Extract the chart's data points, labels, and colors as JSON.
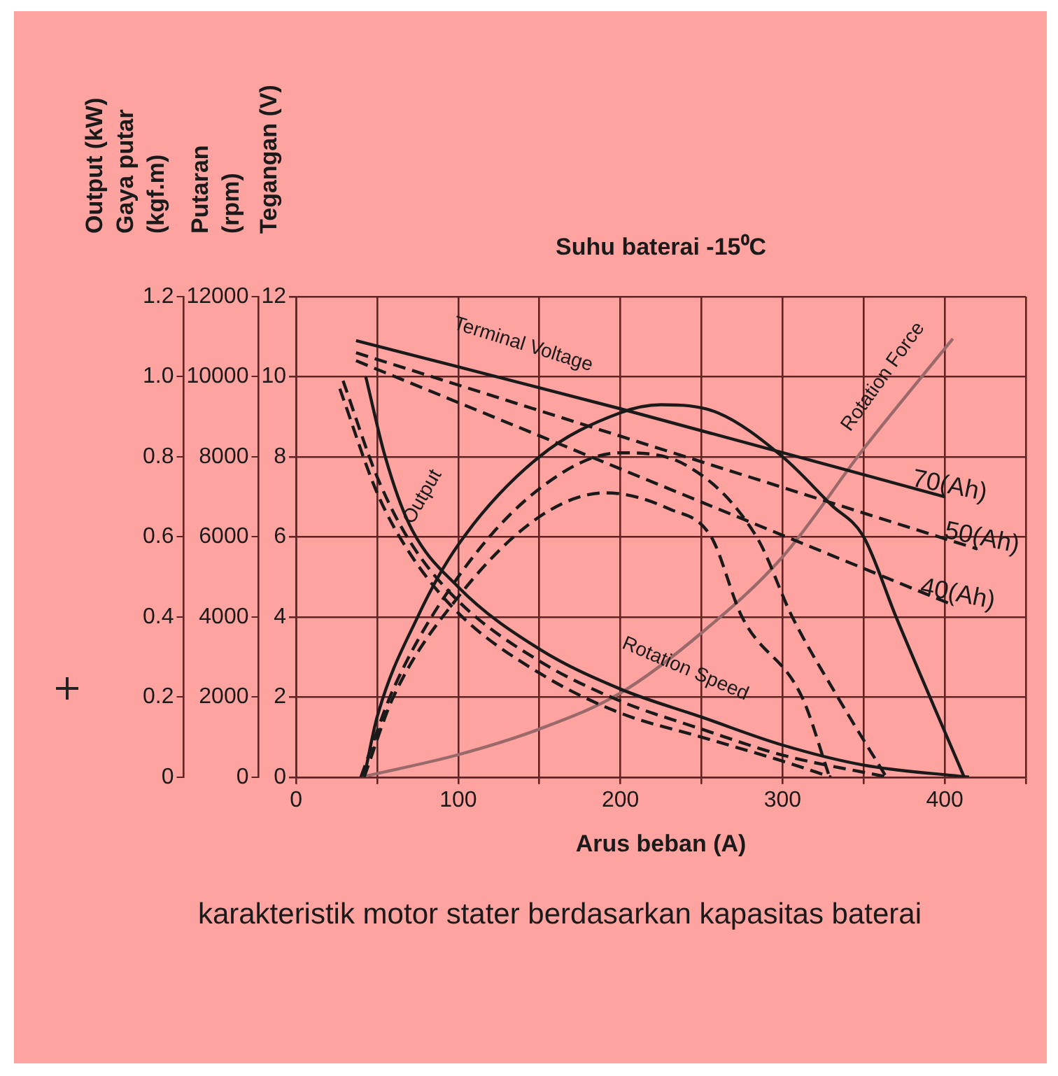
{
  "chart_data": {
    "type": "line",
    "title": "Suhu baterai -15⁰C",
    "xlabel": "Arus beban (A)",
    "ylabel": "Output (kW)\nGaya putar\n(kgf.m)",
    "y2label": "Putaran\n(rpm)",
    "y3label": "Tegangan (V)",
    "xlim": [
      0,
      450
    ],
    "xticks": [
      0,
      {
        "value": 50,
        "label": null
      },
      100,
      {
        "value": 150,
        "label": null
      },
      200,
      {
        "value": 250,
        "label": null
      },
      300,
      {
        "value": 350,
        "label": null
      },
      400,
      {
        "value": 450,
        "label": null
      }
    ],
    "ylim": [
      0,
      1.2
    ],
    "yticks": [
      0,
      {
        "value": 0.2,
        "label": "0.2"
      },
      {
        "value": 0.4,
        "label": "0.4"
      },
      {
        "value": 0.6,
        "label": "0.6"
      },
      {
        "value": 0.8,
        "label": "0.8"
      },
      {
        "value": 1,
        "label": "1.0"
      },
      {
        "value": 1.2,
        "label": "1.2"
      }
    ],
    "y2lim": [
      0,
      12000
    ],
    "y2ticks": [
      0,
      2000,
      4000,
      6000,
      8000,
      10000,
      12000
    ],
    "y3lim": [
      0,
      12
    ],
    "y3ticks": [
      0,
      2,
      4,
      6,
      8,
      10,
      12
    ],
    "grid": true,
    "legend": false,
    "marker": "none",
    "series": [
      {
        "name": "70(Ah)",
        "color": "#1a1a1a",
        "line_style": "solid",
        "axis": "y3",
        "x": [
          37,
          200,
          400
        ],
        "values": [
          10.9,
          9.2,
          7.0
        ]
      },
      {
        "name": "50(Ah)",
        "color": "#1a1a1a",
        "line_style": "dashed",
        "axis": "y3",
        "x": [
          37,
          420
        ],
        "values": [
          10.6,
          5.7
        ]
      },
      {
        "name": "40(Ah)",
        "color": "#1a1a1a",
        "line_style": "dashed",
        "axis": "y3",
        "x": [
          37,
          405
        ],
        "values": [
          10.4,
          4.3
        ]
      },
      {
        "color": "#1a1a1a",
        "line_style": "solid",
        "axis": "y",
        "x": [
          42,
          50,
          75,
          100,
          150,
          200,
          225,
          260,
          300,
          330,
          350,
          370,
          412
        ],
        "values": [
          0,
          0.15,
          0.4,
          0.58,
          0.8,
          0.91,
          0.93,
          0.91,
          0.8,
          0.68,
          0.6,
          0.4,
          0
        ]
      },
      {
        "color": "#1a1a1a",
        "line_style": "dashed",
        "axis": "y",
        "x": [
          40,
          60,
          100,
          150,
          200,
          240,
          284,
          306,
          334,
          364
        ],
        "values": [
          0,
          0.22,
          0.5,
          0.72,
          0.81,
          0.78,
          0.6,
          0.4,
          0.2,
          0
        ]
      },
      {
        "color": "#1a1a1a",
        "line_style": "dashed",
        "axis": "y",
        "x": [
          42,
          60,
          100,
          150,
          191,
          230,
          256,
          275,
          312,
          329
        ],
        "values": [
          0,
          0.2,
          0.45,
          0.65,
          0.71,
          0.67,
          0.6,
          0.4,
          0.2,
          0
        ]
      },
      {
        "color": "#1a1a1a",
        "line_style": "solid",
        "axis": "y2",
        "x": [
          43,
          55,
          70,
          100,
          150,
          200,
          250,
          300,
          350,
          415
        ],
        "values": [
          10000,
          8000,
          6300,
          4750,
          3200,
          2200,
          1500,
          800,
          300,
          0
        ]
      },
      {
        "color": "#1a1a1a",
        "line_style": "dashed",
        "axis": "y2",
        "x": [
          29,
          50,
          70,
          100,
          150,
          200,
          250,
          300,
          365
        ],
        "values": [
          9900,
          7500,
          5900,
          4400,
          2900,
          1900,
          1200,
          550,
          0
        ]
      },
      {
        "color": "#1a1a1a",
        "line_style": "dashed",
        "axis": "y2",
        "x": [
          27,
          50,
          70,
          100,
          150,
          200,
          250,
          300,
          330
        ],
        "values": [
          9700,
          7100,
          5600,
          4100,
          2600,
          1600,
          1000,
          400,
          0
        ]
      },
      {
        "color": "#9a6a6a",
        "line_style": "solid",
        "axis": "y",
        "x": [
          40,
          100,
          150,
          200,
          250,
          300,
          350,
          405
        ],
        "values": [
          0,
          0.056,
          0.12,
          0.21,
          0.36,
          0.55,
          0.82,
          1.095
        ]
      }
    ],
    "annotations": [
      "Terminal Voltage",
      "Output",
      "Rotation Speed",
      "Rotation Force",
      "karakteristik motor stater berdasarkan kapasitas baterai"
    ]
  }
}
